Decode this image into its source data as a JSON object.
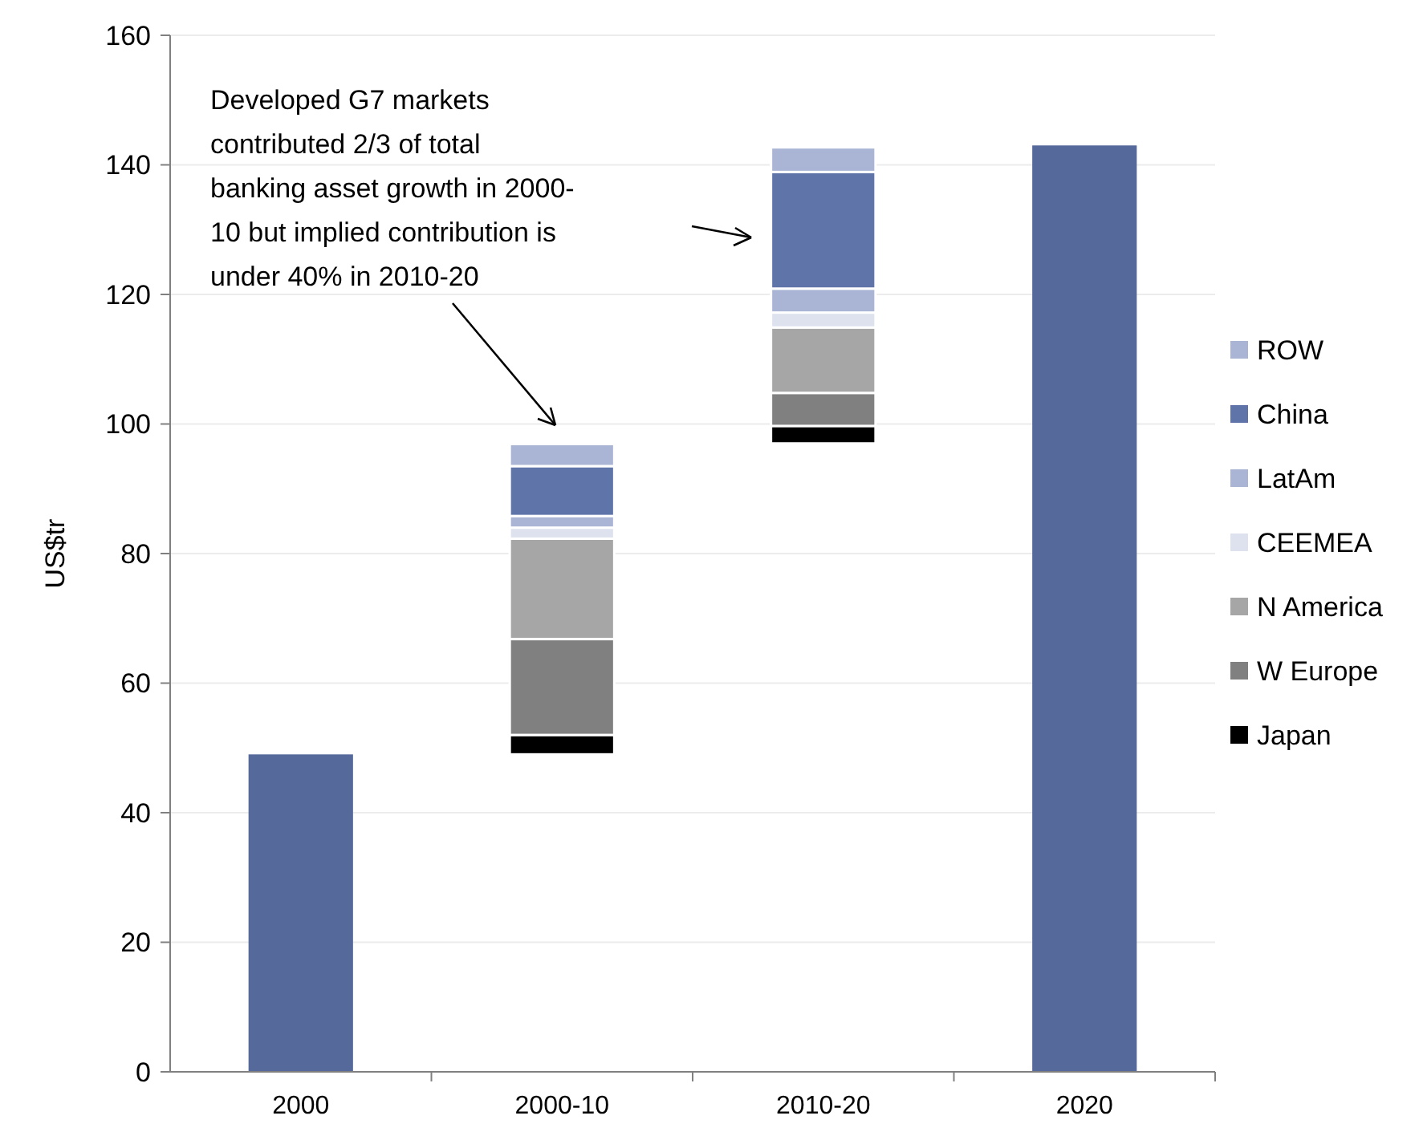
{
  "chart_data": {
    "type": "bar",
    "ylabel": "US$tr",
    "categories": [
      "2000",
      "2000-10",
      "2010-20",
      "2020"
    ],
    "series": [
      {
        "color": "#55699a",
        "values": [
          49,
          null,
          null,
          143
        ]
      },
      {
        "name": "Japan",
        "color": "#000000",
        "base": [
          null,
          49,
          97,
          null
        ],
        "values": [
          null,
          3,
          2.7,
          null
        ]
      },
      {
        "name": "W Europe",
        "color": "#808080",
        "base": [
          null,
          52,
          99.7,
          null
        ],
        "values": [
          null,
          14.8,
          5.1,
          null
        ]
      },
      {
        "name": "N America",
        "color": "#a6a6a6",
        "base": [
          null,
          66.8,
          104.8,
          null
        ],
        "values": [
          null,
          15.5,
          10.1,
          null
        ]
      },
      {
        "name": "CEEMEA",
        "color": "#dde2ee",
        "base": [
          null,
          82.3,
          114.9,
          null
        ],
        "values": [
          null,
          1.7,
          2.3,
          null
        ]
      },
      {
        "name": "LatAm",
        "color": "#aab5d5",
        "base": [
          null,
          84,
          117.2,
          null
        ],
        "values": [
          null,
          1.8,
          3.7,
          null
        ]
      },
      {
        "name": "China",
        "color": "#5f75a9",
        "base": [
          null,
          85.8,
          120.9,
          null
        ],
        "values": [
          null,
          7.7,
          18,
          null
        ]
      },
      {
        "name": "ROW",
        "color": "#aab5d5",
        "base": [
          null,
          93.5,
          138.9,
          null
        ],
        "values": [
          null,
          3.4,
          3.8,
          null
        ]
      }
    ],
    "ylim": [
      0,
      160
    ],
    "yticks": [
      0,
      20,
      40,
      60,
      80,
      100,
      120,
      140,
      160
    ],
    "grid": "y",
    "legend": "right",
    "annotations": [
      "Developed G7 markets contributed 2/3 of total banking asset growth in 2000-10 but implied contribution is under 40% in 2010-20"
    ]
  }
}
